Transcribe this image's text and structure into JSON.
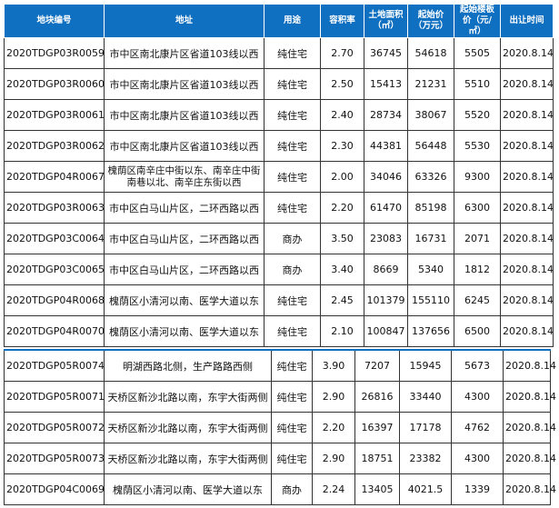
{
  "header": {
    "columns": [
      "地块编号",
      "地址",
      "用途",
      "容积率",
      "土地面积（㎡）",
      "起始价（万元）",
      "起始楼板价（元/㎡）",
      "出让时间"
    ],
    "header_color": "#0f6fc0"
  },
  "table1": [
    [
      "2020TDGP03R0059",
      "市中区南北康片区省道103线以西",
      "纯住宅",
      "2.70",
      "36745",
      "54618",
      "5505",
      "2020.8.14"
    ],
    [
      "2020TDGP03R0060",
      "市中区南北康片区省道103线以西",
      "纯住宅",
      "2.50",
      "15413",
      "21231",
      "5510",
      "2020.8.14"
    ],
    [
      "2020TDGP03R0061",
      "市中区南北康片区省道103线以西",
      "纯住宅",
      "2.40",
      "28734",
      "38067",
      "5520",
      "2020.8.14"
    ],
    [
      "2020TDGP03R0062",
      "市中区南北康片区省道103线以西",
      "纯住宅",
      "2.30",
      "44381",
      "56448",
      "5530",
      "2020.8.14"
    ],
    [
      "2020TDGP04R0067",
      "槐荫区南辛庄中街以东、南辛庄中街南巷以北、南辛庄东街以西",
      "纯住宅",
      "2.00",
      "34046",
      "63326",
      "9300",
      "2020.8.14"
    ],
    [
      "2020TDGP03R0063",
      "市中区白马山片区，二环西路以西",
      "纯住宅",
      "2.20",
      "61470",
      "85198",
      "6300",
      "2020.8.14"
    ],
    [
      "2020TDGP03C0064",
      "市中区白马山片区，二环西路以西",
      "商办",
      "3.50",
      "23083",
      "16731",
      "2071",
      "2020.8.14"
    ],
    [
      "2020TDGP03C0065",
      "市中区白马山片区，二环西路以西",
      "商办",
      "3.40",
      "8669",
      "5340",
      "1812",
      "2020.8.14"
    ],
    [
      "2020TDGP04R0068",
      "槐荫区小清河以南、医学大道以东",
      "纯住宅",
      "2.45",
      "101379",
      "155110",
      "6245",
      "2020.8.14"
    ],
    [
      "2020TDGP04R0070",
      "槐荫区小清河以南、医学大道以东",
      "纯住宅",
      "2.10",
      "100847",
      "137656",
      "6500",
      "2020.8.14"
    ]
  ],
  "table2": [
    [
      "2020TDGP05R0074",
      "明湖西路北侧，生产路路西侧",
      "纯住宅",
      "3.90",
      "7207",
      "15945",
      "5673",
      "2020.8.14"
    ],
    [
      "2020TDGP05R0071",
      "天桥区新沙北路以南，东宇大街两侧",
      "纯住宅",
      "2.90",
      "26816",
      "33440",
      "4300",
      "2020.8.14"
    ],
    [
      "2020TDGP05R0072",
      "天桥区新沙北路以南，东宇大街两侧",
      "纯住宅",
      "2.20",
      "16397",
      "17178",
      "4762",
      "2020.8.14"
    ],
    [
      "2020TDGP05R0073",
      "天桥区新沙北路以南，东宇大街两侧",
      "纯住宅",
      "2.90",
      "18751",
      "23382",
      "4300",
      "2020.8.14"
    ],
    [
      "2020TDGP04C0069",
      "槐荫区小清河以南、医学大道以东",
      "商办",
      "2.24",
      "13405",
      "4021.5",
      "1339",
      "2020.8.14"
    ]
  ]
}
